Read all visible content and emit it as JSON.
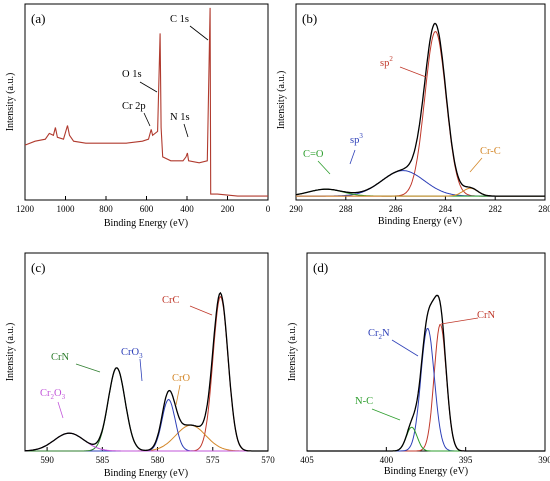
{
  "chart_data": [
    {
      "panel": "(a)",
      "type": "line",
      "xlabel": "Binding Energy (eV)",
      "ylabel": "Intensity (a.u.)",
      "xlim": [
        1200,
        0
      ],
      "xticks": [
        1200,
        1000,
        800,
        600,
        400,
        200,
        0
      ],
      "reversed_x": true,
      "series": [
        {
          "color": "#b03a2e",
          "points": [
            [
              1200,
              0.28
            ],
            [
              1150,
              0.3
            ],
            [
              1100,
              0.31
            ],
            [
              1080,
              0.34
            ],
            [
              1060,
              0.33
            ],
            [
              1050,
              0.37
            ],
            [
              1040,
              0.32
            ],
            [
              1010,
              0.31
            ],
            [
              990,
              0.38
            ],
            [
              980,
              0.33
            ],
            [
              960,
              0.3
            ],
            [
              900,
              0.29
            ],
            [
              800,
              0.29
            ],
            [
              700,
              0.29
            ],
            [
              620,
              0.3
            ],
            [
              590,
              0.31
            ],
            [
              577,
              0.36
            ],
            [
              570,
              0.33
            ],
            [
              545,
              0.35
            ],
            [
              533,
              0.85
            ],
            [
              528,
              0.37
            ],
            [
              520,
              0.22
            ],
            [
              480,
              0.2
            ],
            [
              420,
              0.2
            ],
            [
              405,
              0.22
            ],
            [
              398,
              0.24
            ],
            [
              392,
              0.2
            ],
            [
              340,
              0.19
            ],
            [
              300,
              0.2
            ],
            [
              286,
              0.98
            ],
            [
              283,
              0.03
            ],
            [
              250,
              0.03
            ],
            [
              150,
              0.02
            ],
            [
              0,
              0.02
            ]
          ]
        }
      ],
      "annotations": [
        {
          "text": "C 1s",
          "x": 285
        },
        {
          "text": "O 1s",
          "x": 532
        },
        {
          "text": "Cr 2p",
          "x": 577
        },
        {
          "text": "N 1s",
          "x": 398
        }
      ]
    },
    {
      "panel": "(b)",
      "type": "line",
      "xlabel": "Binding Energy (eV)",
      "ylabel": "Intensity (a.u.)",
      "xlim": [
        290,
        280
      ],
      "xticks": [
        290,
        288,
        286,
        284,
        282,
        280
      ],
      "reversed_x": true,
      "envelope": {
        "color": "#000000",
        "baseline": 0.02
      },
      "peaks": [
        {
          "label": "sp2",
          "center": 284.4,
          "height": 0.84,
          "fwhm": 1.0,
          "color": "#c0392b"
        },
        {
          "label": "sp3",
          "center": 285.7,
          "height": 0.13,
          "fwhm": 2.0,
          "color": "#2e40b8"
        },
        {
          "label": "C=O",
          "center": 288.8,
          "height": 0.035,
          "fwhm": 1.6,
          "color": "#2e9e2e"
        },
        {
          "label": "Cr-C",
          "center": 283.0,
          "height": 0.04,
          "fwhm": 0.7,
          "color": "#d4882a"
        }
      ],
      "annotations": [
        {
          "text": "sp",
          "sup": "2",
          "color": "#c0392b"
        },
        {
          "text": "sp",
          "sup": "3",
          "color": "#2e40b8"
        },
        {
          "text": "C=O",
          "sup": "",
          "color": "#2e9e2e"
        },
        {
          "text": "Cr-C",
          "sup": "",
          "color": "#d4882a"
        }
      ]
    },
    {
      "panel": "(c)",
      "type": "line",
      "xlabel": "Binding Energy (eV)",
      "ylabel": "Intensity (a.u.)",
      "xlim": [
        592,
        570
      ],
      "xticks": [
        590,
        585,
        580,
        575,
        570
      ],
      "reversed_x": true,
      "envelope": {
        "color": "#000000",
        "baseline": 0.0
      },
      "peaks": [
        {
          "label": "CrC",
          "center": 574.3,
          "height": 0.78,
          "fwhm": 1.6,
          "color": "#c0392b"
        },
        {
          "label": "CrO",
          "center": 577.0,
          "height": 0.13,
          "fwhm": 3.2,
          "color": "#d4882a"
        },
        {
          "label": "CrO3",
          "center": 579.0,
          "height": 0.26,
          "fwhm": 1.4,
          "color": "#2e40b8"
        },
        {
          "label": "CrN",
          "center": 583.7,
          "height": 0.42,
          "fwhm": 1.8,
          "color": "#2e7d2e"
        },
        {
          "label": "Cr2O3",
          "center": 588.0,
          "height": 0.09,
          "fwhm": 3.2,
          "color": "#c154d9"
        }
      ],
      "annotations": [
        {
          "text": "CrC",
          "color": "#c0392b"
        },
        {
          "text": "CrO3",
          "color": "#2e40b8"
        },
        {
          "text": "CrN",
          "color": "#2e7d2e"
        },
        {
          "text": "CrO",
          "color": "#d4882a"
        },
        {
          "text": "Cr2O3",
          "color": "#c154d9"
        }
      ]
    },
    {
      "panel": "(d)",
      "type": "line",
      "xlabel": "Binding Energy (eV)",
      "ylabel": "Intensity (a.u.)",
      "xlim": [
        405,
        390
      ],
      "xticks": [
        405,
        400,
        395,
        390
      ],
      "reversed_x": true,
      "envelope": {
        "color": "#000000",
        "baseline": 0.0
      },
      "peaks": [
        {
          "label": "CrN",
          "center": 396.6,
          "height": 0.64,
          "fwhm": 0.9,
          "color": "#c0392b"
        },
        {
          "label": "Cr2N",
          "center": 397.4,
          "height": 0.62,
          "fwhm": 1.0,
          "color": "#2e40b8"
        },
        {
          "label": "N-C",
          "center": 398.4,
          "height": 0.12,
          "fwhm": 0.8,
          "color": "#2e9e2e"
        }
      ],
      "annotations": [
        {
          "text": "CrN",
          "color": "#c0392b"
        },
        {
          "text": "Cr2N",
          "color": "#2e40b8"
        },
        {
          "text": "N-C",
          "color": "#2e9e2e"
        }
      ]
    }
  ]
}
